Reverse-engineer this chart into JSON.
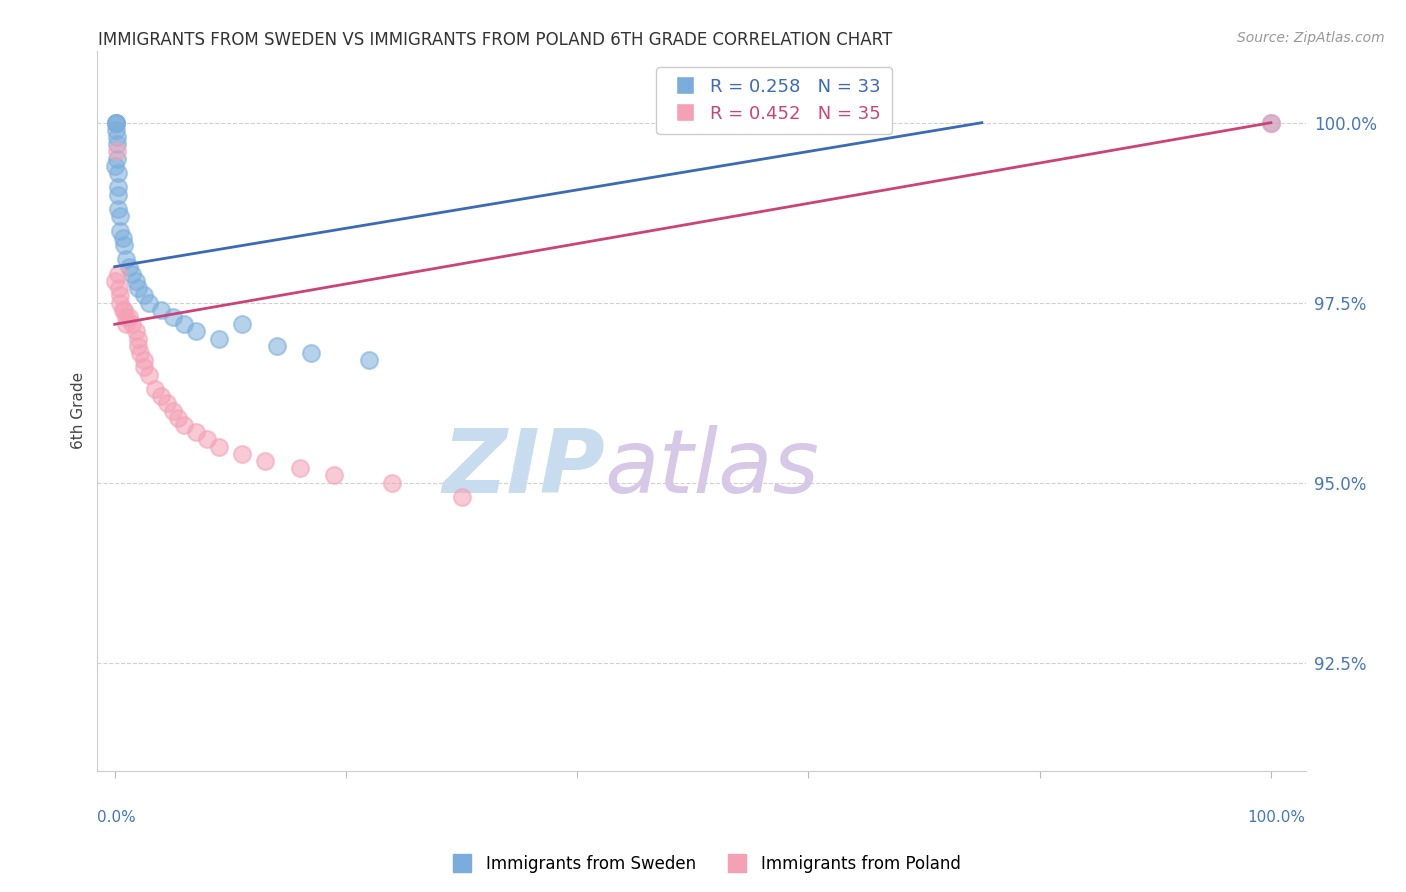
{
  "title": "IMMIGRANTS FROM SWEDEN VS IMMIGRANTS FROM POLAND 6TH GRADE CORRELATION CHART",
  "source": "Source: ZipAtlas.com",
  "ylabel": "6th Grade",
  "ylim": [
    91.0,
    101.0
  ],
  "xlim": [
    -1.5,
    103.0
  ],
  "yticks": [
    92.5,
    95.0,
    97.5,
    100.0
  ],
  "blue_R": 0.258,
  "blue_N": 33,
  "pink_R": 0.452,
  "pink_N": 35,
  "blue_color": "#7AADDC",
  "pink_color": "#F4A0B5",
  "blue_line_color": "#3B6BB5",
  "pink_line_color": "#CC4477",
  "title_color": "#222222",
  "source_color": "#999999",
  "axis_label_color": "#4477BB",
  "grid_color": "#CCCCCC",
  "watermark_zip_color": "#C8DCF0",
  "watermark_atlas_color": "#D8C8E8",
  "sweden_label": "Immigrants from Sweden",
  "poland_label": "Immigrants from Poland",
  "sweden_x": [
    0.0,
    0.1,
    0.1,
    0.15,
    0.15,
    0.2,
    0.2,
    0.2,
    0.25,
    0.25,
    0.3,
    0.3,
    0.5,
    0.5,
    0.7,
    0.8,
    1.0,
    1.2,
    1.5,
    1.8,
    2.0,
    2.5,
    3.0,
    4.0,
    5.0,
    6.0,
    7.0,
    9.0,
    11.0,
    14.0,
    17.0,
    22.0,
    100.0
  ],
  "sweden_y": [
    99.4,
    100.0,
    100.0,
    100.0,
    99.9,
    99.8,
    99.7,
    99.5,
    99.3,
    99.1,
    99.0,
    98.8,
    98.7,
    98.5,
    98.4,
    98.3,
    98.1,
    98.0,
    97.9,
    97.8,
    97.7,
    97.6,
    97.5,
    97.4,
    97.3,
    97.2,
    97.1,
    97.0,
    97.2,
    96.9,
    96.8,
    96.7,
    100.0
  ],
  "poland_x": [
    0.0,
    0.2,
    0.3,
    0.4,
    0.5,
    0.5,
    0.7,
    0.8,
    1.0,
    1.0,
    1.2,
    1.5,
    1.8,
    2.0,
    2.0,
    2.2,
    2.5,
    2.5,
    3.0,
    3.5,
    4.0,
    4.5,
    5.0,
    5.5,
    6.0,
    7.0,
    8.0,
    9.0,
    11.0,
    13.0,
    16.0,
    19.0,
    24.0,
    30.0,
    100.0
  ],
  "poland_y": [
    97.8,
    99.6,
    97.9,
    97.7,
    97.6,
    97.5,
    97.4,
    97.4,
    97.3,
    97.2,
    97.3,
    97.2,
    97.1,
    97.0,
    96.9,
    96.8,
    96.7,
    96.6,
    96.5,
    96.3,
    96.2,
    96.1,
    96.0,
    95.9,
    95.8,
    95.7,
    95.6,
    95.5,
    95.4,
    95.3,
    95.2,
    95.1,
    95.0,
    94.8,
    100.0
  ],
  "blue_line_x": [
    0.0,
    75.0
  ],
  "blue_line_y": [
    98.0,
    100.0
  ],
  "pink_line_x": [
    0.0,
    100.0
  ],
  "pink_line_y": [
    97.2,
    100.0
  ]
}
